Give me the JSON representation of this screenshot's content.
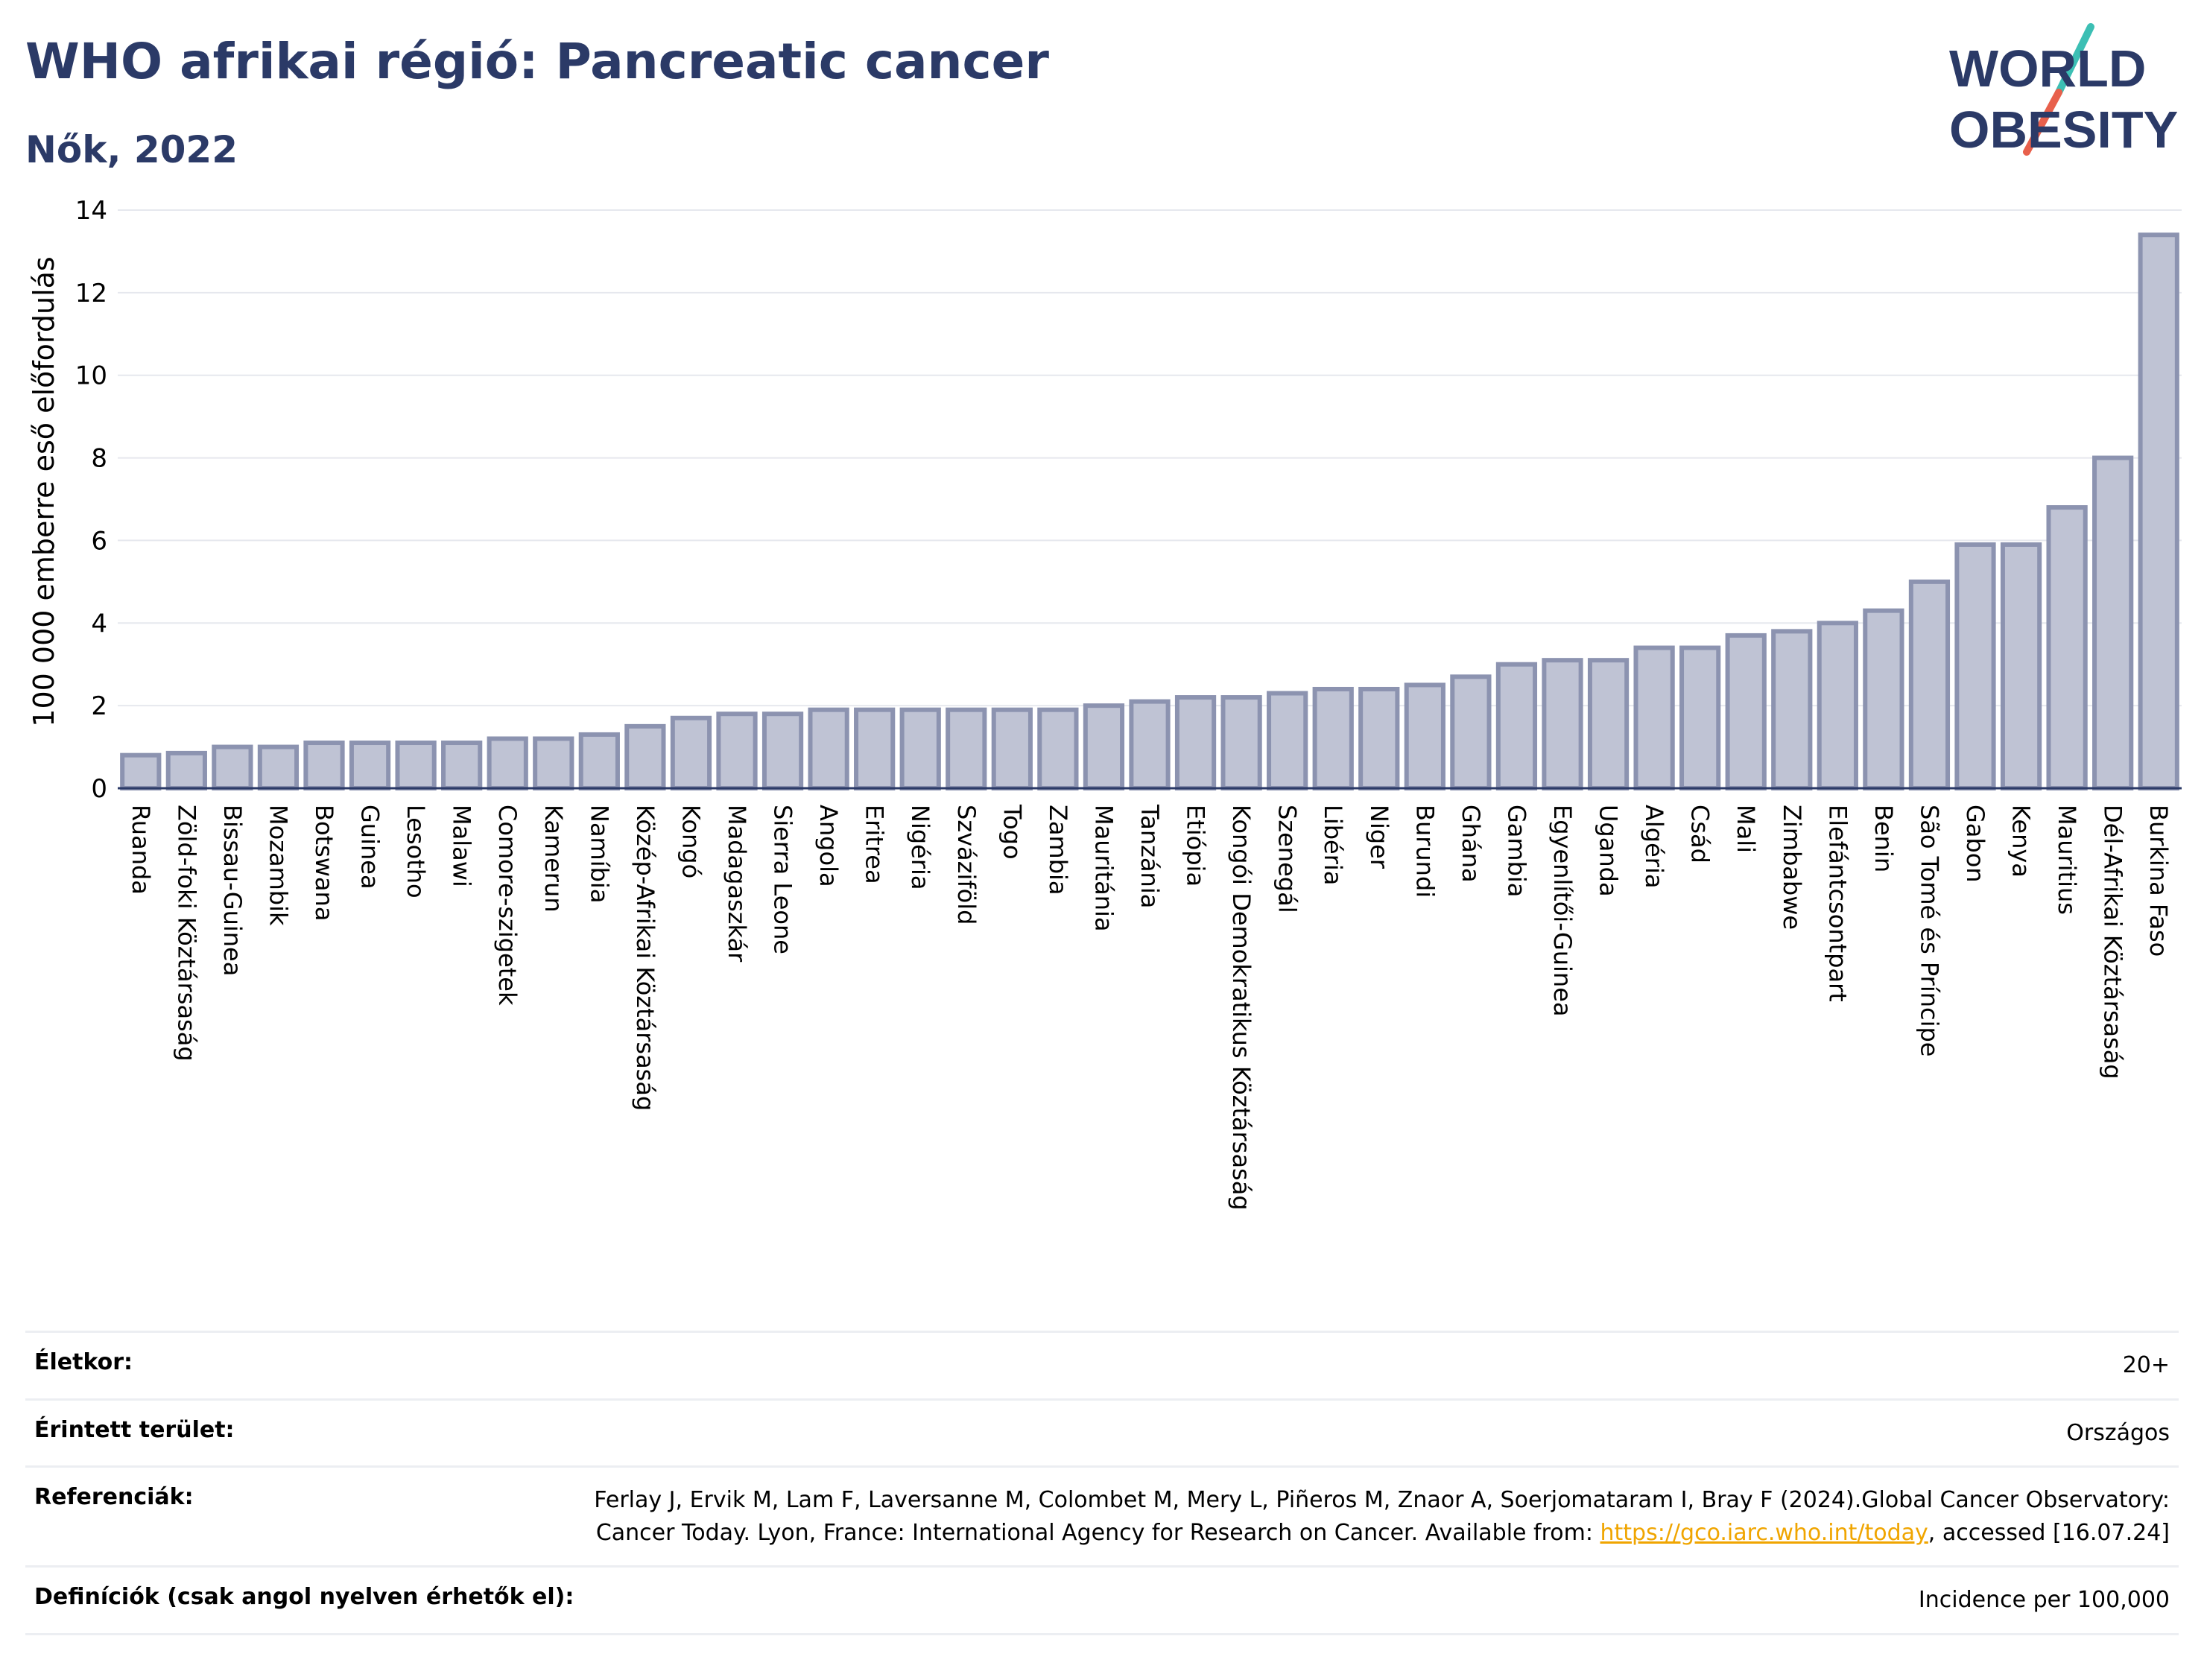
{
  "header": {
    "title": "WHO afrikai régió: Pancreatic cancer",
    "subtitle": "Nők, 2022"
  },
  "logo": {
    "line1": "WORLD",
    "line2": "OBESITY",
    "colors": {
      "text": "#2b3a67",
      "slash_teal": "#3cbfb4",
      "slash_red": "#e8604c"
    }
  },
  "chart_data": {
    "type": "bar",
    "ylabel": "100 000 emberre eső előfordulás",
    "xlabel": "",
    "ylim": [
      0,
      14
    ],
    "yticks": [
      0,
      2,
      4,
      6,
      8,
      10,
      12,
      14
    ],
    "grid": true,
    "bar_fill": "#bfc3d4",
    "bar_stroke": "#8c93b0",
    "categories": [
      "Ruanda",
      "Zöld-foki Köztársaság",
      "Bissau-Guinea",
      "Mozambik",
      "Botswana",
      "Guinea",
      "Lesotho",
      "Malawi",
      "Comore-szigetek",
      "Kamerun",
      "Namíbia",
      "Közép-Afrikai Köztársaság",
      "Kongó",
      "Madagaszkár",
      "Sierra Leone",
      "Angola",
      "Eritrea",
      "Nigéria",
      "Szváziföld",
      "Togo",
      "Zambia",
      "Mauritánia",
      "Tanzánia",
      "Etiópia",
      "Kongói Demokratikus Köztársaság",
      "Szenegál",
      "Libéria",
      "Niger",
      "Burundi",
      "Ghána",
      "Gambia",
      "Egyenlítői-Guinea",
      "Uganda",
      "Algéria",
      "Csád",
      "Mali",
      "Zimbabwe",
      "Elefántcsontpart",
      "Benin",
      "São Tomé és Príncipe",
      "Gabon",
      "Kenya",
      "Mauritius",
      "Dél-Afrikai Köztársaság",
      "Burkina Faso"
    ],
    "values": [
      0.8,
      0.85,
      1.0,
      1.0,
      1.1,
      1.1,
      1.1,
      1.1,
      1.2,
      1.2,
      1.3,
      1.5,
      1.7,
      1.8,
      1.8,
      1.9,
      1.9,
      1.9,
      1.9,
      1.9,
      1.9,
      2.0,
      2.1,
      2.2,
      2.2,
      2.3,
      2.4,
      2.4,
      2.5,
      2.7,
      3.0,
      3.1,
      3.1,
      3.4,
      3.4,
      3.7,
      3.8,
      4.0,
      4.3,
      5.0,
      5.9,
      5.9,
      6.8,
      8.0,
      13.4
    ]
  },
  "meta": {
    "age_label": "Életkor:",
    "age_value": "20+",
    "area_label": "Érintett terület:",
    "area_value": "Országos",
    "ref_label": "Referenciák:",
    "ref_text_1": "Ferlay J, Ervik M, Lam F, Laversanne M, Colombet M, Mery L, Piñeros M, Znaor A, Soerjomataram I, Bray F (2024).Global Cancer Observatory: Cancer Today. Lyon, France: International Agency for Research on Cancer. Available from: ",
    "ref_link": "https://gco.iarc.who.int/today",
    "ref_text_2": ", accessed [16.07.24]",
    "def_label": "Definíciók (csak angol nyelven érhetők el):",
    "def_value": "Incidence per 100,000"
  }
}
